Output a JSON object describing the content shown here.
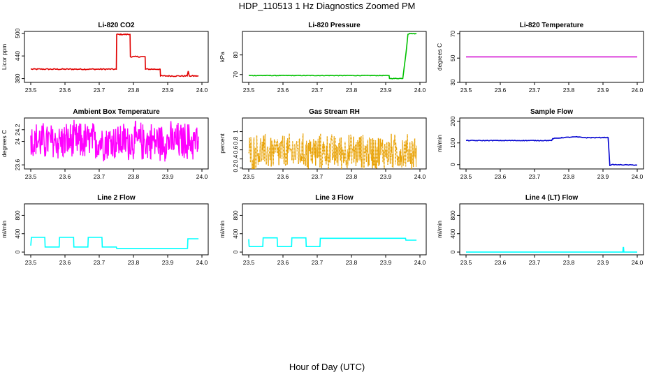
{
  "figure": {
    "title": "HDP_110513  1 Hz Diagnostics Zoomed PM",
    "xlabel": "Hour of Day (UTC)"
  },
  "chart_data": [
    {
      "type": "line",
      "title": "Li-820 CO2",
      "ylabel": "Licor ppm",
      "xlim": [
        23.5,
        24.0
      ],
      "ylim": [
        370,
        505
      ],
      "xticks": [
        "23.5",
        "23.6",
        "23.7",
        "23.8",
        "23.9",
        "24.0"
      ],
      "yticks": [
        380,
        440,
        500
      ],
      "color": "#e00000",
      "style": "steps",
      "noise": 1.5,
      "series": [
        {
          "x": [
            23.5,
            23.75,
            23.751,
            23.79,
            23.791,
            23.834,
            23.835,
            23.878,
            23.879,
            23.957,
            23.96,
            23.963,
            23.99
          ],
          "y": [
            405,
            405,
            497,
            497,
            438,
            438,
            405,
            405,
            387,
            387,
            400,
            387,
            387
          ]
        }
      ]
    },
    {
      "type": "line",
      "title": "Li-820 Pressure",
      "ylabel": "kPa",
      "xlim": [
        23.5,
        24.0
      ],
      "ylim": [
        66,
        92
      ],
      "xticks": [
        "23.5",
        "23.6",
        "23.7",
        "23.8",
        "23.9",
        "24.0"
      ],
      "yticks": [
        70,
        80
      ],
      "color": "#00c000",
      "style": "steps",
      "noise": 0.15,
      "series": [
        {
          "x": [
            23.5,
            23.91,
            23.911,
            23.95,
            23.96,
            23.965,
            23.97,
            23.99
          ],
          "y": [
            69.5,
            69.5,
            68.0,
            68.0,
            82,
            90.5,
            91,
            90.8
          ]
        }
      ]
    },
    {
      "type": "line",
      "title": "Li-820 Temperature",
      "ylabel": "degrees C",
      "xlim": [
        23.5,
        24.0
      ],
      "ylim": [
        30,
        72
      ],
      "xticks": [
        "23.5",
        "23.6",
        "23.7",
        "23.8",
        "23.9",
        "24.0"
      ],
      "yticks": [
        30,
        50,
        70
      ],
      "color": "#d000d0",
      "style": "steps",
      "noise": 0,
      "series": [
        {
          "x": [
            23.5,
            24.0
          ],
          "y": [
            51,
            51
          ]
        }
      ]
    },
    {
      "type": "line",
      "title": "Ambient Box Temperature",
      "ylabel": "degrees C",
      "xlim": [
        23.5,
        24.0
      ],
      "ylim": [
        23.53,
        24.4
      ],
      "xticks": [
        "23.5",
        "23.6",
        "23.7",
        "23.8",
        "23.9",
        "24.0"
      ],
      "yticks": [
        23.6,
        24.0,
        24.2
      ],
      "color": "#ff00ff",
      "style": "noisy",
      "x_range": [
        23.5,
        23.99
      ],
      "center": 24.0,
      "amplitude": 0.38,
      "samples": 420
    },
    {
      "type": "line",
      "title": "Gas Stream RH",
      "ylabel": "percent",
      "xlim": [
        23.5,
        24.0
      ],
      "ylim": [
        0.18,
        1.3
      ],
      "xticks": [
        "23.5",
        "23.6",
        "23.7",
        "23.8",
        "23.9",
        "24.0"
      ],
      "yticks": [
        0.2,
        0.4,
        0.6,
        0.8,
        1.0
      ],
      "color": "#e8a000",
      "style": "noisy",
      "x_range": [
        23.5,
        23.99
      ],
      "center": 0.55,
      "amplitude": 0.45,
      "samples": 480
    },
    {
      "type": "line",
      "title": "Sample Flow",
      "ylabel": "ml/min",
      "xlim": [
        23.5,
        24.0
      ],
      "ylim": [
        -20,
        215
      ],
      "xticks": [
        "23.5",
        "23.6",
        "23.7",
        "23.8",
        "23.9",
        "24.0"
      ],
      "yticks": [
        0,
        100,
        200
      ],
      "color": "#0000d0",
      "style": "steps",
      "noise": 1.5,
      "series": [
        {
          "x": [
            23.5,
            23.75,
            23.753,
            23.787,
            23.82,
            23.85,
            23.915,
            23.92,
            23.925,
            24.0
          ],
          "y": [
            111,
            111,
            120,
            125,
            128,
            124,
            125,
            -4,
            0,
            -2
          ]
        }
      ]
    },
    {
      "type": "line",
      "title": "Line 2 Flow",
      "ylabel": "ml/min",
      "xlim": [
        23.5,
        24.0
      ],
      "ylim": [
        -60,
        1050
      ],
      "xticks": [
        "23.5",
        "23.6",
        "23.7",
        "23.8",
        "23.9",
        "24.0"
      ],
      "yticks": [
        0,
        400,
        800
      ],
      "color": "#00ffff",
      "style": "steps",
      "noise": 0,
      "series": [
        {
          "x": [
            23.5,
            23.502,
            23.541,
            23.542,
            23.583,
            23.584,
            23.625,
            23.626,
            23.667,
            23.668,
            23.708,
            23.709,
            23.75,
            23.751,
            23.958,
            23.959,
            23.99
          ],
          "y": [
            140,
            320,
            320,
            110,
            110,
            320,
            320,
            110,
            110,
            320,
            320,
            110,
            110,
            80,
            80,
            290,
            290
          ]
        }
      ]
    },
    {
      "type": "line",
      "title": "Line 3 Flow",
      "ylabel": "ml/min",
      "xlim": [
        23.5,
        24.0
      ],
      "ylim": [
        -60,
        1050
      ],
      "xticks": [
        "23.5",
        "23.6",
        "23.7",
        "23.8",
        "23.9",
        "24.0"
      ],
      "yticks": [
        0,
        400,
        800
      ],
      "color": "#00ffff",
      "style": "steps",
      "noise": 0,
      "series": [
        {
          "x": [
            23.5,
            23.501,
            23.502,
            23.541,
            23.542,
            23.583,
            23.584,
            23.625,
            23.626,
            23.667,
            23.668,
            23.708,
            23.709,
            23.958,
            23.959,
            23.99
          ],
          "y": [
            280,
            130,
            120,
            120,
            310,
            310,
            120,
            120,
            310,
            310,
            120,
            120,
            300,
            300,
            260,
            260
          ]
        }
      ]
    },
    {
      "type": "line",
      "title": "Line 4 (LT) Flow",
      "ylabel": "ml/min",
      "xlim": [
        23.5,
        24.0
      ],
      "ylim": [
        -60,
        1050
      ],
      "xticks": [
        "23.5",
        "23.6",
        "23.7",
        "23.8",
        "23.9",
        "24.0"
      ],
      "yticks": [
        0,
        400,
        800
      ],
      "color": "#00ffff",
      "style": "steps",
      "noise": 0,
      "series": [
        {
          "x": [
            23.5,
            23.958,
            23.959,
            23.96,
            23.961,
            24.0
          ],
          "y": [
            0,
            0,
            100,
            100,
            0,
            0
          ]
        }
      ]
    }
  ]
}
